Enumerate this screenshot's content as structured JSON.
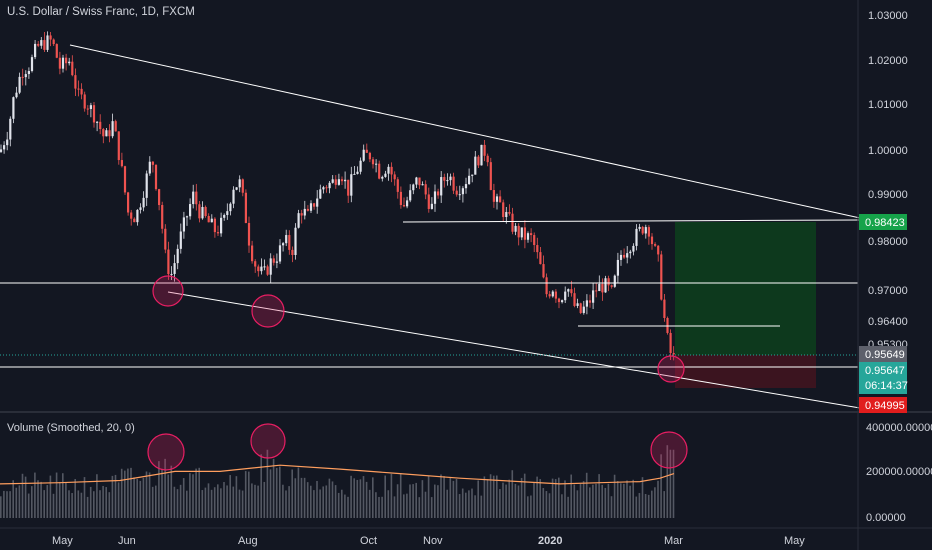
{
  "chart_title": "U.S. Dollar / Swiss Franc, 1D, FXCM",
  "volume_title": "Volume (Smoothed, 20, 0)",
  "colors": {
    "background": "#131722",
    "up": "#e0e3eb",
    "down": "#ef5350",
    "grid_text": "#d1d4dc",
    "trendline": "#ffffff",
    "target_zone": "#0d3b1e",
    "stop_zone": "#3d1420",
    "circle": "#e91e63",
    "volume_ma": "#ff9e5e"
  },
  "price_axis": {
    "ticks": [
      "1.03000",
      "1.02000",
      "1.01000",
      "1.00000",
      "0.99000",
      "0.98000",
      "0.97000",
      "0.96400",
      "0.95300"
    ],
    "labels": [
      {
        "text": "0.98423",
        "color": "#16a34a"
      },
      {
        "text": "0.95649",
        "color": "#5d606b"
      },
      {
        "text": "0.95647",
        "color": "#26a69a"
      },
      {
        "text": "06:14:37",
        "color": "#26a69a"
      },
      {
        "text": "0.94995",
        "color": "#e11d1d"
      }
    ]
  },
  "volume_axis": {
    "ticks": [
      "400000.00000",
      "200000.00000",
      "0.00000"
    ]
  },
  "time_axis": {
    "ticks": [
      "May",
      "Jun",
      "Aug",
      "Oct",
      "Nov",
      "2020",
      "Mar",
      "May"
    ]
  },
  "chart_data": {
    "type": "candlestick",
    "title": "U.S. Dollar / Swiss Franc, 1D, FXCM",
    "ylim": [
      0.946,
      1.031
    ],
    "close_trend": [
      [
        0,
        0.9995
      ],
      [
        8,
        1.004
      ],
      [
        14,
        1.011
      ],
      [
        22,
        1.0165
      ],
      [
        30,
        1.0175
      ],
      [
        37,
        1.0212
      ],
      [
        45,
        1.0222
      ],
      [
        52,
        1.0225
      ],
      [
        60,
        1.017
      ],
      [
        70,
        1.0185
      ],
      [
        78,
        1.011
      ],
      [
        86,
        1.01
      ],
      [
        95,
        1.007
      ],
      [
        105,
        1.002
      ],
      [
        113,
        1.0055
      ],
      [
        120,
        0.998
      ],
      [
        128,
        0.987
      ],
      [
        136,
        0.986
      ],
      [
        144,
        0.992
      ],
      [
        152,
        0.9985
      ],
      [
        160,
        0.988
      ],
      [
        166,
        0.9765
      ],
      [
        172,
        0.974
      ],
      [
        178,
        0.98
      ],
      [
        185,
        0.985
      ],
      [
        193,
        0.9905
      ],
      [
        200,
        0.987
      ],
      [
        208,
        0.985
      ],
      [
        216,
        0.983
      ],
      [
        225,
        0.9855
      ],
      [
        233,
        0.9925
      ],
      [
        240,
        0.993
      ],
      [
        245,
        0.987
      ],
      [
        250,
        0.98
      ],
      [
        257,
        0.975
      ],
      [
        264,
        0.974
      ],
      [
        270,
        0.9765
      ],
      [
        277,
        0.978
      ],
      [
        285,
        0.981
      ],
      [
        292,
        0.979
      ],
      [
        300,
        0.988
      ],
      [
        308,
        0.986
      ],
      [
        316,
        0.99
      ],
      [
        324,
        0.9925
      ],
      [
        332,
        0.993
      ],
      [
        340,
        0.996
      ],
      [
        348,
        0.9915
      ],
      [
        356,
        0.9955
      ],
      [
        364,
        0.9985
      ],
      [
        372,
        0.999
      ],
      [
        380,
        0.995
      ],
      [
        388,
        0.997
      ],
      [
        396,
        0.9925
      ],
      [
        403,
        0.988
      ],
      [
        410,
        0.9905
      ],
      [
        418,
        0.994
      ],
      [
        425,
        0.991
      ],
      [
        432,
        0.988
      ],
      [
        440,
        0.9925
      ],
      [
        448,
        0.995
      ],
      [
        456,
        0.992
      ],
      [
        464,
        0.993
      ],
      [
        472,
        0.996
      ],
      [
        480,
        0.999
      ],
      [
        487,
        1.0
      ],
      [
        493,
        0.989
      ],
      [
        500,
        0.9885
      ],
      [
        508,
        0.9855
      ],
      [
        516,
        0.983
      ],
      [
        524,
        0.982
      ],
      [
        532,
        0.9815
      ],
      [
        540,
        0.976
      ],
      [
        546,
        0.97
      ],
      [
        553,
        0.9715
      ],
      [
        560,
        0.9685
      ],
      [
        566,
        0.9725
      ],
      [
        573,
        0.968
      ],
      [
        580,
        0.966
      ],
      [
        588,
        0.968
      ],
      [
        596,
        0.971
      ],
      [
        604,
        0.972
      ],
      [
        612,
        0.97
      ],
      [
        620,
        0.978
      ],
      [
        628,
        0.98
      ],
      [
        636,
        0.982
      ],
      [
        643,
        0.984
      ],
      [
        648,
        0.9845
      ],
      [
        653,
        0.98
      ],
      [
        658,
        0.977
      ],
      [
        662,
        0.969
      ],
      [
        666,
        0.962
      ],
      [
        670,
        0.958
      ],
      [
        674,
        0.9565
      ]
    ],
    "volume": {
      "type": "bar",
      "ylim": [
        0,
        400000
      ],
      "ma_color": "#ff9e5e"
    }
  },
  "annotations": {
    "resistance_level": "0.98423",
    "stop_level": "0.94995",
    "entry_level": "0.95647"
  }
}
